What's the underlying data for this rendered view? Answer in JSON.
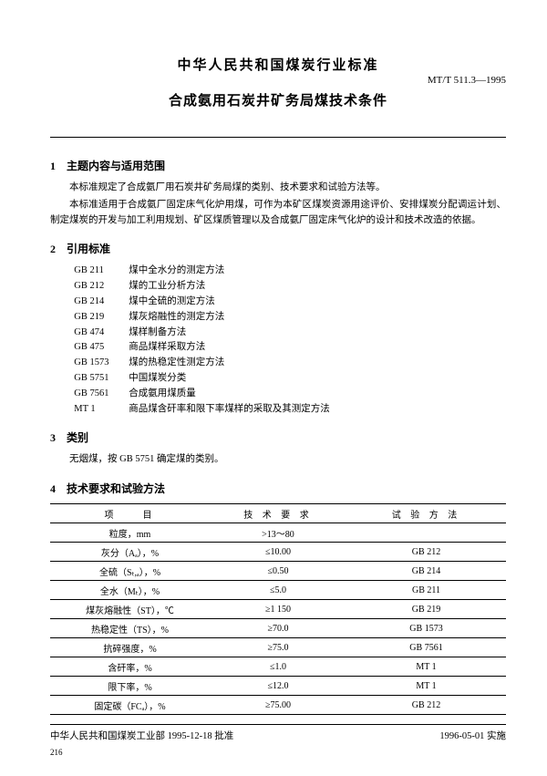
{
  "header": {
    "main_title": "中华人民共和国煤炭行业标准",
    "doc_code": "MT/T 511.3—1995",
    "sub_title": "合成氨用石炭井矿务局煤技术条件"
  },
  "sections": {
    "s1": {
      "heading": "1　主题内容与适用范围",
      "p1": "本标准规定了合成氨厂用石炭井矿务局煤的类别、技术要求和试验方法等。",
      "p2": "本标准适用于合成氨厂固定床气化炉用煤，可作为本矿区煤炭资源用途评价、安排煤炭分配调运计划、制定煤炭的开发与加工利用规划、矿区煤质管理以及合成氨厂固定床气化炉的设计和技术改造的依据。"
    },
    "s2": {
      "heading": "2　引用标准",
      "refs": [
        {
          "code": "GB 211",
          "title": "煤中全水分的测定方法"
        },
        {
          "code": "GB 212",
          "title": "煤的工业分析方法"
        },
        {
          "code": "GB 214",
          "title": "煤中全硫的测定方法"
        },
        {
          "code": "GB 219",
          "title": "煤灰熔融性的测定方法"
        },
        {
          "code": "GB 474",
          "title": "煤样制备方法"
        },
        {
          "code": "GB 475",
          "title": "商品煤样采取方法"
        },
        {
          "code": "GB 1573",
          "title": "煤的热稳定性测定方法"
        },
        {
          "code": "GB 5751",
          "title": "中国煤炭分类"
        },
        {
          "code": "GB 7561",
          "title": "合成氨用煤质量"
        },
        {
          "code": "MT 1",
          "title": "商品煤含矸率和限下率煤样的采取及其测定方法"
        }
      ]
    },
    "s3": {
      "heading": "3　类别",
      "p1": "无烟煤，按 GB 5751 确定煤的类别。"
    },
    "s4": {
      "heading": "4　技术要求和试验方法",
      "table": {
        "headers": {
          "c1": "项　　目",
          "c2": "技 术 要 求",
          "c3": "试 验 方 法"
        },
        "rows": [
          {
            "c1": "粒度，mm",
            "c2": ">13～80",
            "c3": ""
          },
          {
            "c1": "灰分（Aₐ），%",
            "c2": "≤10.00",
            "c3": "GB 212"
          },
          {
            "c1": "全硫（Sₜ,ₐ），%",
            "c2": "≤0.50",
            "c3": "GB 214"
          },
          {
            "c1": "全水（Mₜ），%",
            "c2": "≤5.0",
            "c3": "GB 211"
          },
          {
            "c1": "煤灰熔融性（ST），℃",
            "c2": "≥1 150",
            "c3": "GB 219"
          },
          {
            "c1": "热稳定性（TS），%",
            "c2": "≥70.0",
            "c3": "GB 1573"
          },
          {
            "c1": "抗碎强度，%",
            "c2": "≥75.0",
            "c3": "GB 7561"
          },
          {
            "c1": "含矸率，%",
            "c2": "≤1.0",
            "c3": "MT 1"
          },
          {
            "c1": "限下率，%",
            "c2": "≤12.0",
            "c3": "MT 1"
          },
          {
            "c1": "固定碳（FCₐ），%",
            "c2": "≥75.00",
            "c3": "GB 212"
          }
        ]
      }
    }
  },
  "footer": {
    "left": "中华人民共和国煤炭工业部 1995-12-18 批准",
    "right": "1996-05-01 实施",
    "page": "216"
  }
}
